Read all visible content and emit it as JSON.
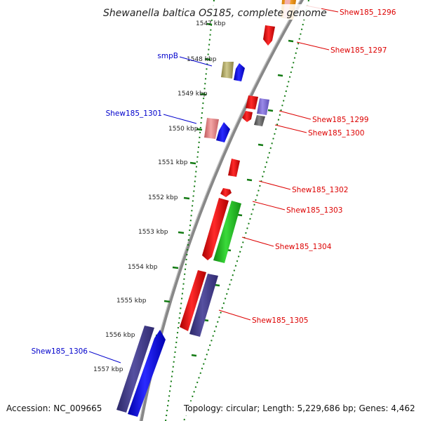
{
  "title": "Shewanella baltica OS185, complete genome",
  "accession": "Accession: NC_009665",
  "topology": "Topology: circular; Length: 5,229,686 bp; Genes: 4,462",
  "colors": {
    "red_gene": "#ff1a1a",
    "blue_gene": "#1a1aff",
    "green_gene": "#22c422",
    "navy_gene": "#4a4590",
    "olive_gene": "#b5ad6b",
    "pink_gene": "#e8898a",
    "lavender_gene": "#8878d8",
    "gray_gene": "#666666",
    "backbone": "#888888",
    "tick_green": "#127a12",
    "label_red": "#dd0000",
    "label_blue": "#0000cc"
  },
  "kbp_labels": [
    "1547 kbp",
    "1548 kbp",
    "1549 kbp",
    "1550 kbp",
    "1551 kbp",
    "1552 kbp",
    "1553 kbp",
    "1554 kbp",
    "1555 kbp",
    "1556 kbp",
    "1557 kbp"
  ],
  "gene_labels_left": [
    "smpB",
    "Shew185_1301",
    "Shew185_1306"
  ],
  "gene_labels_right": [
    "Shew185_1296",
    "Shew185_1297",
    "Shew185_1299",
    "Shew185_1300",
    "Shew185_1302",
    "Shew185_1303",
    "Shew185_1304",
    "Shew185_1305"
  ]
}
